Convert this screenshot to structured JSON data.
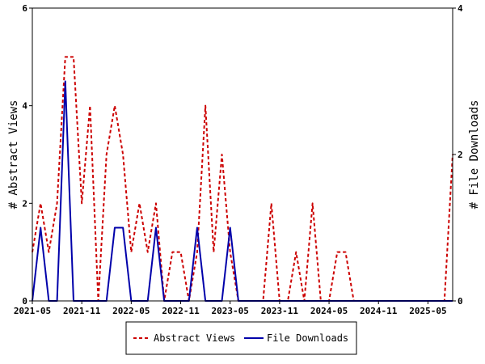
{
  "chart_data": {
    "type": "line",
    "ylabel_left": "# Abstract Views",
    "ylabel_right": "# File Downloads",
    "ylim_left": [
      0,
      6
    ],
    "ylim_right": [
      0,
      4
    ],
    "yticks_left": [
      0,
      2,
      4,
      6
    ],
    "yticks_right": [
      0,
      2,
      4
    ],
    "x_tick_labels": [
      "2021-05",
      "2021-11",
      "2022-05",
      "2022-11",
      "2023-05",
      "2023-11",
      "2024-05",
      "2024-11",
      "2025-05"
    ],
    "x": [
      "2021-05",
      "2021-06",
      "2021-07",
      "2021-08",
      "2021-09",
      "2021-10",
      "2021-11",
      "2021-12",
      "2022-01",
      "2022-02",
      "2022-03",
      "2022-04",
      "2022-05",
      "2022-06",
      "2022-07",
      "2022-08",
      "2022-09",
      "2022-10",
      "2022-11",
      "2022-12",
      "2023-01",
      "2023-02",
      "2023-03",
      "2023-04",
      "2023-05",
      "2023-06",
      "2023-07",
      "2023-08",
      "2023-09",
      "2023-10",
      "2023-11",
      "2023-12",
      "2024-01",
      "2024-02",
      "2024-03",
      "2024-04",
      "2024-05",
      "2024-06",
      "2024-07",
      "2024-08",
      "2024-09",
      "2024-10",
      "2024-11",
      "2024-12",
      "2025-01",
      "2025-02",
      "2025-03",
      "2025-04",
      "2025-05",
      "2025-06",
      "2025-07",
      "2025-08"
    ],
    "series": [
      {
        "name": "Abstract Views",
        "axis": "left",
        "color": "#cc0000",
        "dash": "dashed",
        "values": [
          1,
          2,
          1,
          2,
          5,
          5,
          2,
          4,
          0,
          3,
          4,
          3,
          1,
          2,
          1,
          2,
          0,
          1,
          1,
          0,
          1,
          4,
          1,
          3,
          1,
          0,
          0,
          0,
          0,
          2,
          0,
          0,
          1,
          0,
          2,
          0,
          0,
          1,
          1,
          0,
          0,
          0,
          0,
          0,
          0,
          0,
          0,
          0,
          0,
          0,
          0,
          3
        ]
      },
      {
        "name": "File Downloads",
        "axis": "right",
        "color": "#0000aa",
        "dash": "solid",
        "values": [
          0,
          1,
          0,
          0,
          3,
          0,
          0,
          0,
          0,
          0,
          1,
          1,
          0,
          0,
          0,
          1,
          0,
          0,
          0,
          0,
          1,
          0,
          0,
          0,
          1,
          0,
          0,
          0,
          0,
          0,
          0,
          0,
          0,
          0,
          0,
          0,
          0,
          0,
          0,
          0,
          0,
          0,
          0,
          0,
          0,
          0,
          0,
          0,
          0,
          0,
          0,
          0
        ]
      }
    ],
    "grid": false,
    "legend_position": "bottom"
  }
}
